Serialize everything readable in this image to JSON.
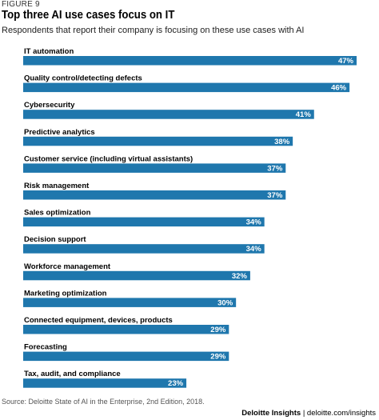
{
  "figure_label": "FIGURE 9",
  "title": "Top three AI use cases focus on IT",
  "subtitle": "Respondents that report their company is focusing on these use cases with AI",
  "source": "Source: Deloitte State of AI in the Enterprise, 2nd Edition, 2018.",
  "brand": {
    "name": "Deloitte Insights",
    "separator": "|",
    "url": "deloitte.com/insights"
  },
  "colors": {
    "bar": "#1f77ad",
    "bar_label": "#ffffff"
  },
  "chart_data": {
    "type": "bar",
    "orientation": "horizontal",
    "categories": [
      "IT automation",
      "Quality control/detecting defects",
      "Cybersecurity",
      "Predictive analytics",
      "Customer service (including virtual assistants)",
      "Risk management",
      "Sales optimization",
      "Decision support",
      "Workforce management",
      "Marketing optimization",
      "Connected equipment, devices, products",
      "Forecasting",
      "Tax, audit, and compliance"
    ],
    "values": [
      47,
      46,
      41,
      38,
      37,
      37,
      34,
      34,
      32,
      30,
      29,
      29,
      23
    ],
    "value_labels": [
      "47%",
      "46%",
      "41%",
      "38%",
      "37%",
      "37%",
      "34%",
      "34%",
      "32%",
      "30%",
      "29%",
      "29%",
      "23%"
    ],
    "xlim": [
      0,
      47
    ],
    "grid": false,
    "legend": "none"
  }
}
